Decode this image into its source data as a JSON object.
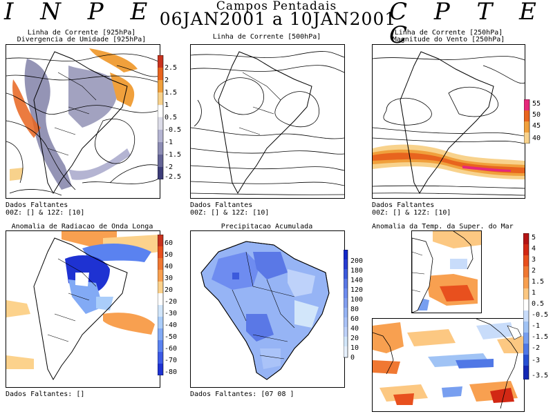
{
  "header": {
    "left_brand": "I N P E",
    "right_brand": "C P T E C",
    "title": "Campos Pentadais",
    "period": "06JAN2001 a 10JAN2001"
  },
  "panels": {
    "p1": {
      "title1": "Linha de Corrente [925hPa]",
      "title2": "Divergencia de Umidade [925hPa]",
      "missing1": "Dados Faltantes",
      "missing2": "00Z: [] & 12Z: [10]",
      "colorbar": [
        "2.5",
        "2",
        "1.5",
        "1",
        "0.5",
        "-0.5",
        "-1",
        "-1.5",
        "-2",
        "-2.5"
      ],
      "colors": [
        "#c8321e",
        "#e8641e",
        "#f0a03c",
        "#f8d28c",
        "#ffffff",
        "#dcdce8",
        "#b4b4d2",
        "#8c8cb4",
        "#646496",
        "#3c3c78"
      ]
    },
    "p2": {
      "title1": "Linha de Corrente [500hPa]",
      "missing1": "Dados Faltantes",
      "missing2": "00Z: [] & 12Z: [10]"
    },
    "p3": {
      "title1": "Linha de Corrente [250hPa]",
      "title2": "Magnitude do Vento [250hPa]",
      "missing1": "Dados Faltantes",
      "missing2": "00Z: [] & 12Z: [10]",
      "colorbar": [
        "55",
        "50",
        "45",
        "40"
      ],
      "colors": [
        "#e6287a",
        "#e8641e",
        "#f0a03c",
        "#f8d28c"
      ]
    },
    "p4": {
      "title1": "Anomalia de Radiacao de Onda Longa",
      "missing1": "Dados Faltantes: []",
      "colorbar": [
        "60",
        "50",
        "40",
        "30",
        "20",
        "-20",
        "-30",
        "-40",
        "-50",
        "-60",
        "-70",
        "-80"
      ],
      "colors": [
        "#c8321e",
        "#e8501e",
        "#f07832",
        "#f8a050",
        "#fcd28c",
        "#ffffff",
        "#d2e6fa",
        "#aacdfa",
        "#82aaf5",
        "#5a82f0",
        "#3c5ae6",
        "#1e32d2"
      ]
    },
    "p5": {
      "title1": "Precipitacao Acumulada",
      "missing1": "Dados Faltantes: [07 08 ]",
      "colorbar": [
        "200",
        "180",
        "140",
        "120",
        "100",
        "80",
        "60",
        "40",
        "20",
        "10",
        "0"
      ],
      "colors": [
        "#1428c8",
        "#283cd2",
        "#3c5adc",
        "#5a78e6",
        "#6e8cf0",
        "#829ff0",
        "#96b4f5",
        "#aac3f8",
        "#bed2fa",
        "#d2e6fa",
        "#e6f0fc"
      ]
    },
    "p6": {
      "title1": "Anomalia da Temp. da Super. do Mar",
      "colorbar": [
        "5",
        "4",
        "3",
        "2",
        "1.5",
        "1",
        "0.5",
        "-0.5",
        "-1",
        "-1.5",
        "-2",
        "-3",
        "-3.5"
      ],
      "colors": [
        "#b41414",
        "#d22814",
        "#e8501e",
        "#f07832",
        "#f8a050",
        "#fcc882",
        "#ffffff",
        "#c8dcfa",
        "#a0c3f5",
        "#789ff0",
        "#5078e6",
        "#2850d2",
        "#1428b4"
      ]
    }
  }
}
